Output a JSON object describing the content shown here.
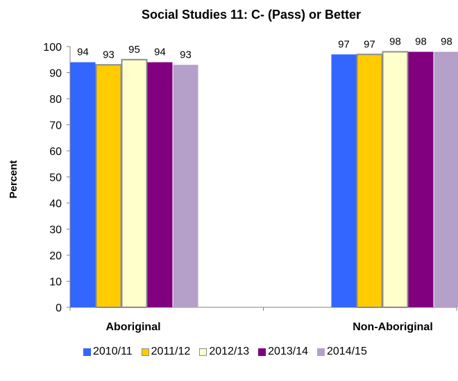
{
  "chart_data": {
    "type": "bar",
    "title": "Social Studies 11: C- (Pass) or Better",
    "ylabel": "Percent",
    "xlabel": "",
    "ylim": [
      0,
      100
    ],
    "yticks": [
      0,
      10,
      20,
      30,
      40,
      50,
      60,
      70,
      80,
      90,
      100
    ],
    "categories": [
      "Aboriginal",
      "Non-Aboriginal"
    ],
    "grid": false,
    "legend_position": "bottom",
    "series": [
      {
        "name": "2010/11",
        "color": "#3366ff",
        "values": [
          94,
          97
        ]
      },
      {
        "name": "2011/12",
        "color": "#ffcc00",
        "values": [
          93,
          97
        ]
      },
      {
        "name": "2012/13",
        "color": "#ffffcc",
        "values": [
          95,
          98
        ]
      },
      {
        "name": "2013/14",
        "color": "#800080",
        "values": [
          94,
          98
        ]
      },
      {
        "name": "2014/15",
        "color": "#b4a0c8",
        "values": [
          93,
          98
        ]
      }
    ]
  }
}
